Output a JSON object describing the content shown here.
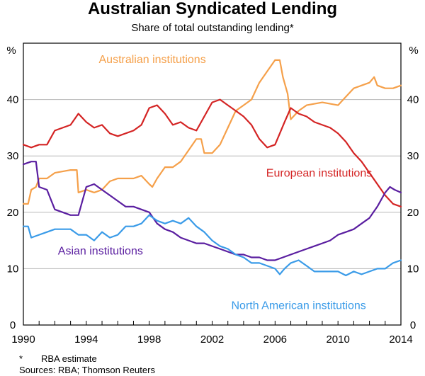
{
  "chart_data": {
    "type": "line",
    "title": "Australian Syndicated Lending",
    "subtitle": "Share of total outstanding lending*",
    "y_unit_left": "%",
    "y_unit_right": "%",
    "xlim": [
      1990,
      2014
    ],
    "ylim": [
      0,
      50
    ],
    "x_ticks": [
      "1990",
      "1994",
      "1998",
      "2002",
      "2006",
      "2010",
      "2014"
    ],
    "y_ticks": [
      "0",
      "10",
      "20",
      "30",
      "40"
    ],
    "grid": true,
    "legend": "inline labels",
    "series": [
      {
        "name": "Australian institutions",
        "color": "#f5a04a",
        "points": [
          [
            1990,
            21.5
          ],
          [
            1990.3,
            21.5
          ],
          [
            1990.5,
            24
          ],
          [
            1990.8,
            24.5
          ],
          [
            1991,
            26
          ],
          [
            1991.5,
            26
          ],
          [
            1992,
            27
          ],
          [
            1993,
            27.5
          ],
          [
            1993.4,
            27.5
          ],
          [
            1993.5,
            23.5
          ],
          [
            1994,
            24
          ],
          [
            1994.5,
            23.5
          ],
          [
            1995,
            24
          ],
          [
            1995.5,
            25.5
          ],
          [
            1996,
            26
          ],
          [
            1997,
            26
          ],
          [
            1997.5,
            26.5
          ],
          [
            1998,
            25
          ],
          [
            1998.2,
            24.5
          ],
          [
            1998.5,
            26
          ],
          [
            1999,
            28
          ],
          [
            1999.5,
            28
          ],
          [
            2000,
            29
          ],
          [
            2000.5,
            31
          ],
          [
            2001,
            33
          ],
          [
            2001.3,
            33
          ],
          [
            2001.5,
            30.5
          ],
          [
            2002,
            30.5
          ],
          [
            2002.5,
            32
          ],
          [
            2003,
            35
          ],
          [
            2003.5,
            38
          ],
          [
            2004,
            39
          ],
          [
            2004.5,
            40
          ],
          [
            2005,
            43
          ],
          [
            2005.5,
            45
          ],
          [
            2006,
            47
          ],
          [
            2006.3,
            47
          ],
          [
            2006.5,
            44
          ],
          [
            2006.8,
            41
          ],
          [
            2007,
            36.5
          ],
          [
            2007.5,
            38
          ],
          [
            2008,
            39
          ],
          [
            2009,
            39.5
          ],
          [
            2010,
            39
          ],
          [
            2010.5,
            40.5
          ],
          [
            2011,
            42
          ],
          [
            2011.5,
            42.5
          ],
          [
            2012,
            43
          ],
          [
            2012.3,
            44
          ],
          [
            2012.5,
            42.5
          ],
          [
            2013,
            42
          ],
          [
            2013.5,
            42
          ],
          [
            2014,
            42.5
          ]
        ]
      },
      {
        "name": "European institutions",
        "color": "#d42424",
        "points": [
          [
            1990,
            32
          ],
          [
            1990.5,
            31.5
          ],
          [
            1991,
            32
          ],
          [
            1991.5,
            32
          ],
          [
            1992,
            34.5
          ],
          [
            1993,
            35.5
          ],
          [
            1993.5,
            37.5
          ],
          [
            1994,
            36
          ],
          [
            1994.5,
            35
          ],
          [
            1995,
            35.5
          ],
          [
            1995.5,
            34
          ],
          [
            1996,
            33.5
          ],
          [
            1997,
            34.5
          ],
          [
            1997.5,
            35.5
          ],
          [
            1998,
            38.5
          ],
          [
            1998.5,
            39
          ],
          [
            1999,
            37.5
          ],
          [
            1999.5,
            35.5
          ],
          [
            2000,
            36
          ],
          [
            2000.5,
            35
          ],
          [
            2001,
            34.5
          ],
          [
            2001.5,
            37
          ],
          [
            2002,
            39.5
          ],
          [
            2002.5,
            40
          ],
          [
            2003,
            39
          ],
          [
            2003.5,
            38
          ],
          [
            2004,
            37
          ],
          [
            2004.5,
            35.5
          ],
          [
            2005,
            33
          ],
          [
            2005.5,
            31.5
          ],
          [
            2006,
            32
          ],
          [
            2006.3,
            34
          ],
          [
            2006.6,
            36
          ],
          [
            2007,
            38.5
          ],
          [
            2007.5,
            37.5
          ],
          [
            2008,
            37
          ],
          [
            2008.5,
            36
          ],
          [
            2009,
            35.5
          ],
          [
            2009.5,
            35
          ],
          [
            2010,
            34
          ],
          [
            2010.5,
            32.5
          ],
          [
            2011,
            30.5
          ],
          [
            2011.5,
            29
          ],
          [
            2012,
            27
          ],
          [
            2012.5,
            25
          ],
          [
            2013,
            23
          ],
          [
            2013.5,
            21.5
          ],
          [
            2014,
            21
          ]
        ]
      },
      {
        "name": "Asian institutions",
        "color": "#5a1ea0",
        "points": [
          [
            1990,
            28.5
          ],
          [
            1990.5,
            29
          ],
          [
            1990.8,
            29
          ],
          [
            1991,
            24.5
          ],
          [
            1991.5,
            24
          ],
          [
            1992,
            20.5
          ],
          [
            1992.5,
            20
          ],
          [
            1993,
            19.5
          ],
          [
            1993.5,
            19.5
          ],
          [
            1994,
            24.5
          ],
          [
            1994.5,
            25
          ],
          [
            1995,
            24
          ],
          [
            1995.5,
            23
          ],
          [
            1996,
            22
          ],
          [
            1996.5,
            21
          ],
          [
            1997,
            21
          ],
          [
            1997.5,
            20.5
          ],
          [
            1998,
            20
          ],
          [
            1998.5,
            18
          ],
          [
            1999,
            17
          ],
          [
            1999.5,
            16.5
          ],
          [
            2000,
            15.5
          ],
          [
            2000.5,
            15
          ],
          [
            2001,
            14.5
          ],
          [
            2001.5,
            14.5
          ],
          [
            2002,
            14
          ],
          [
            2002.5,
            13.5
          ],
          [
            2003,
            13
          ],
          [
            2003.5,
            12.5
          ],
          [
            2004,
            12.5
          ],
          [
            2004.5,
            12
          ],
          [
            2005,
            12
          ],
          [
            2005.5,
            11.5
          ],
          [
            2006,
            11.5
          ],
          [
            2006.5,
            12
          ],
          [
            2007,
            12.5
          ],
          [
            2007.5,
            13
          ],
          [
            2008,
            13.5
          ],
          [
            2008.5,
            14
          ],
          [
            2009,
            14.5
          ],
          [
            2009.5,
            15
          ],
          [
            2010,
            16
          ],
          [
            2010.5,
            16.5
          ],
          [
            2011,
            17
          ],
          [
            2011.5,
            18
          ],
          [
            2012,
            19
          ],
          [
            2012.5,
            21
          ],
          [
            2013,
            23.5
          ],
          [
            2013.3,
            24.5
          ],
          [
            2013.6,
            24
          ],
          [
            2014,
            23.5
          ]
        ]
      },
      {
        "name": "North American institutions",
        "color": "#3a9be8",
        "points": [
          [
            1990,
            17.5
          ],
          [
            1990.3,
            17.5
          ],
          [
            1990.5,
            15.5
          ],
          [
            1991,
            16
          ],
          [
            1991.5,
            16.5
          ],
          [
            1992,
            17
          ],
          [
            1993,
            17
          ],
          [
            1993.5,
            16
          ],
          [
            1994,
            16
          ],
          [
            1994.5,
            15
          ],
          [
            1995,
            16.5
          ],
          [
            1995.5,
            15.5
          ],
          [
            1996,
            16
          ],
          [
            1996.5,
            17.5
          ],
          [
            1997,
            17.5
          ],
          [
            1997.5,
            18
          ],
          [
            1998,
            19.5
          ],
          [
            1998.5,
            18.5
          ],
          [
            1999,
            18
          ],
          [
            1999.5,
            18.5
          ],
          [
            2000,
            18
          ],
          [
            2000.5,
            19
          ],
          [
            2001,
            17.5
          ],
          [
            2001.5,
            16.5
          ],
          [
            2002,
            15
          ],
          [
            2002.5,
            14
          ],
          [
            2003,
            13.5
          ],
          [
            2003.5,
            12.5
          ],
          [
            2004,
            12
          ],
          [
            2004.5,
            11
          ],
          [
            2005,
            11
          ],
          [
            2005.5,
            10.5
          ],
          [
            2006,
            10
          ],
          [
            2006.3,
            9
          ],
          [
            2006.6,
            10
          ],
          [
            2007,
            11
          ],
          [
            2007.5,
            11.5
          ],
          [
            2008,
            10.5
          ],
          [
            2008.5,
            9.5
          ],
          [
            2009,
            9.5
          ],
          [
            2009.5,
            9.5
          ],
          [
            2010,
            9.5
          ],
          [
            2010.5,
            8.8
          ],
          [
            2011,
            9.5
          ],
          [
            2011.5,
            9
          ],
          [
            2012,
            9.5
          ],
          [
            2012.5,
            10
          ],
          [
            2013,
            10
          ],
          [
            2013.5,
            11
          ],
          [
            2014,
            11.5
          ]
        ]
      }
    ],
    "series_labels": [
      {
        "text": "Australian institutions",
        "series": 0,
        "lx": 1998.2,
        "ly": 46.5
      },
      {
        "text": "European institutions",
        "series": 1,
        "lx": 2008.8,
        "ly": 26.3
      },
      {
        "text": "Asian institutions",
        "series": 2,
        "lx": 1994.9,
        "ly": 12.5
      },
      {
        "text": "North American institutions",
        "series": 3,
        "lx": 2007.5,
        "ly": 2.8
      }
    ]
  },
  "footnotes": {
    "mark": "*",
    "estimate": "RBA estimate",
    "sources": "Sources: RBA; Thomson Reuters"
  }
}
